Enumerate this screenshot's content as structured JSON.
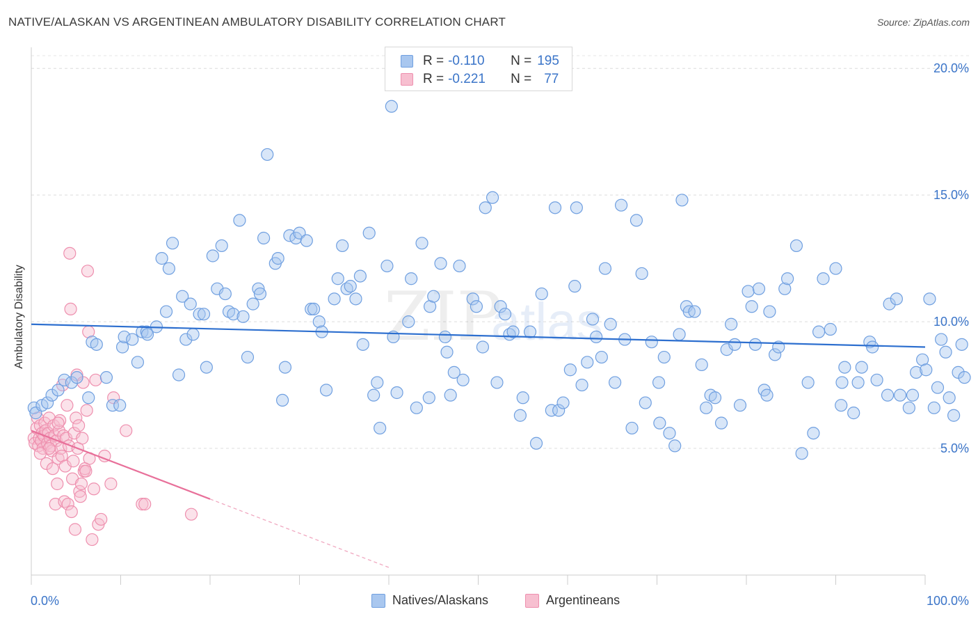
{
  "header": {
    "title": "NATIVE/ALASKAN VS ARGENTINEAN AMBULATORY DISABILITY CORRELATION CHART",
    "source": "Source: ZipAtlas.com"
  },
  "watermark": {
    "text_zip": "ZIP",
    "text_atlas": "atlas"
  },
  "legend": {
    "rows": [
      {
        "r_label": "R = ",
        "r_value": "-0.110",
        "n_label": "N = ",
        "n_value": "195",
        "color": "#a9c7ef",
        "border": "#6f9fe0"
      },
      {
        "r_label": "R = ",
        "r_value": "-0.221",
        "n_label": "N = ",
        "n_value": "77",
        "color": "#f7bfd0",
        "border": "#ee8fae"
      }
    ]
  },
  "bottom_legend": {
    "items": [
      {
        "label": "Natives/Alaskans",
        "color": "#a9c7ef",
        "border": "#6f9fe0"
      },
      {
        "label": "Argentineans",
        "color": "#f7bfd0",
        "border": "#ee8fae"
      }
    ]
  },
  "chart_data": {
    "type": "scatter",
    "title": "NATIVE/ALASKAN VS ARGENTINEAN AMBULATORY DISABILITY CORRELATION CHART",
    "xlabel": "",
    "ylabel": "Ambulatory Disability",
    "xlim": [
      0,
      100
    ],
    "ylim": [
      0,
      20.5
    ],
    "x_tick_labels": [
      "0.0%",
      "100.0%"
    ],
    "y_ticks": [
      5,
      10,
      15,
      20
    ],
    "y_tick_labels": [
      "5.0%",
      "10.0%",
      "15.0%",
      "20.0%"
    ],
    "grid": "horizontal dashed",
    "legend_position": "top-center",
    "series": [
      {
        "name": "Natives/Alaskans",
        "color": "#6f9fe0",
        "fill": "#a9c7ef",
        "trend": {
          "x0": 0,
          "y0": 9.9,
          "x1": 100,
          "y1": 9.0
        },
        "points": [
          [
            0.3,
            6.6
          ],
          [
            0.5,
            6.4
          ],
          [
            1.2,
            6.7
          ],
          [
            1.8,
            6.8
          ],
          [
            2.3,
            7.1
          ],
          [
            3.0,
            7.3
          ],
          [
            3.7,
            7.7
          ],
          [
            4.5,
            7.6
          ],
          [
            5.1,
            7.8
          ],
          [
            6.4,
            7.0
          ],
          [
            6.8,
            9.2
          ],
          [
            7.3,
            9.1
          ],
          [
            8.4,
            7.8
          ],
          [
            9.1,
            6.7
          ],
          [
            9.9,
            6.7
          ],
          [
            10.2,
            9.0
          ],
          [
            10.4,
            9.4
          ],
          [
            11.3,
            9.3
          ],
          [
            11.9,
            8.4
          ],
          [
            12.4,
            9.6
          ],
          [
            12.9,
            9.6
          ],
          [
            13.0,
            9.5
          ],
          [
            14.0,
            9.8
          ],
          [
            14.6,
            12.5
          ],
          [
            15.1,
            10.4
          ],
          [
            15.4,
            12.1
          ],
          [
            15.8,
            13.1
          ],
          [
            16.5,
            7.9
          ],
          [
            16.9,
            11.0
          ],
          [
            17.3,
            9.3
          ],
          [
            17.8,
            10.7
          ],
          [
            18.1,
            9.5
          ],
          [
            18.8,
            10.3
          ],
          [
            19.3,
            10.3
          ],
          [
            19.6,
            8.2
          ],
          [
            20.3,
            12.6
          ],
          [
            20.8,
            11.3
          ],
          [
            21.3,
            13.0
          ],
          [
            21.7,
            11.1
          ],
          [
            22.1,
            10.4
          ],
          [
            22.6,
            10.3
          ],
          [
            23.3,
            14.0
          ],
          [
            23.7,
            10.2
          ],
          [
            24.2,
            8.6
          ],
          [
            24.8,
            10.7
          ],
          [
            25.4,
            11.3
          ],
          [
            25.6,
            11.1
          ],
          [
            26.0,
            13.3
          ],
          [
            26.4,
            16.6
          ],
          [
            27.3,
            12.3
          ],
          [
            27.6,
            12.5
          ],
          [
            28.1,
            6.9
          ],
          [
            28.4,
            8.2
          ],
          [
            28.9,
            13.4
          ],
          [
            29.6,
            13.3
          ],
          [
            30.0,
            13.5
          ],
          [
            30.8,
            13.2
          ],
          [
            31.3,
            10.5
          ],
          [
            31.6,
            10.5
          ],
          [
            32.2,
            10.0
          ],
          [
            32.5,
            9.6
          ],
          [
            33.0,
            7.3
          ],
          [
            33.9,
            10.9
          ],
          [
            34.3,
            11.7
          ],
          [
            34.8,
            13.0
          ],
          [
            35.3,
            11.3
          ],
          [
            35.7,
            11.4
          ],
          [
            36.3,
            10.9
          ],
          [
            36.8,
            11.8
          ],
          [
            37.1,
            9.1
          ],
          [
            37.8,
            13.5
          ],
          [
            38.3,
            7.1
          ],
          [
            38.7,
            7.6
          ],
          [
            39.0,
            5.8
          ],
          [
            39.8,
            12.2
          ],
          [
            40.3,
            18.5
          ],
          [
            40.5,
            9.4
          ],
          [
            40.9,
            7.2
          ],
          [
            42.2,
            10.0
          ],
          [
            42.5,
            11.7
          ],
          [
            43.1,
            6.6
          ],
          [
            43.7,
            13.1
          ],
          [
            44.5,
            7.0
          ],
          [
            44.6,
            10.6
          ],
          [
            45.0,
            11.0
          ],
          [
            45.8,
            12.3
          ],
          [
            46.3,
            9.4
          ],
          [
            46.5,
            8.8
          ],
          [
            46.9,
            7.1
          ],
          [
            47.3,
            8.0
          ],
          [
            47.9,
            12.2
          ],
          [
            48.3,
            7.7
          ],
          [
            49.4,
            10.9
          ],
          [
            49.8,
            10.6
          ],
          [
            50.5,
            9.0
          ],
          [
            50.8,
            14.5
          ],
          [
            51.6,
            14.9
          ],
          [
            52.1,
            7.6
          ],
          [
            52.5,
            10.6
          ],
          [
            53.0,
            10.3
          ],
          [
            53.5,
            9.5
          ],
          [
            53.9,
            9.6
          ],
          [
            54.7,
            6.3
          ],
          [
            55.0,
            7.0
          ],
          [
            55.8,
            9.6
          ],
          [
            56.5,
            5.2
          ],
          [
            57.1,
            11.1
          ],
          [
            58.2,
            6.5
          ],
          [
            58.6,
            14.5
          ],
          [
            59.0,
            6.5
          ],
          [
            59.5,
            6.8
          ],
          [
            60.3,
            8.1
          ],
          [
            60.8,
            11.4
          ],
          [
            61.0,
            14.5
          ],
          [
            61.6,
            7.5
          ],
          [
            62.2,
            8.4
          ],
          [
            62.8,
            10.1
          ],
          [
            63.2,
            9.4
          ],
          [
            63.8,
            8.6
          ],
          [
            64.2,
            12.1
          ],
          [
            64.8,
            9.9
          ],
          [
            65.3,
            7.6
          ],
          [
            66.0,
            14.6
          ],
          [
            66.4,
            9.3
          ],
          [
            67.2,
            5.8
          ],
          [
            67.7,
            14.0
          ],
          [
            68.3,
            11.9
          ],
          [
            68.7,
            6.8
          ],
          [
            69.4,
            9.2
          ],
          [
            70.2,
            7.6
          ],
          [
            70.3,
            6.0
          ],
          [
            70.8,
            8.6
          ],
          [
            71.4,
            5.6
          ],
          [
            72.0,
            5.1
          ],
          [
            72.5,
            9.5
          ],
          [
            72.8,
            14.8
          ],
          [
            73.3,
            10.6
          ],
          [
            73.6,
            10.4
          ],
          [
            74.2,
            10.4
          ],
          [
            75.0,
            8.3
          ],
          [
            75.5,
            6.6
          ],
          [
            76.0,
            7.1
          ],
          [
            76.5,
            7.0
          ],
          [
            77.2,
            6.0
          ],
          [
            77.8,
            8.9
          ],
          [
            78.3,
            9.9
          ],
          [
            78.7,
            9.1
          ],
          [
            79.3,
            6.7
          ],
          [
            80.2,
            11.2
          ],
          [
            80.6,
            10.6
          ],
          [
            81.0,
            9.1
          ],
          [
            81.4,
            11.3
          ],
          [
            82.0,
            7.3
          ],
          [
            82.3,
            7.1
          ],
          [
            82.6,
            10.4
          ],
          [
            83.2,
            8.7
          ],
          [
            83.6,
            9.0
          ],
          [
            84.3,
            11.3
          ],
          [
            84.6,
            11.7
          ],
          [
            85.6,
            13.0
          ],
          [
            86.2,
            4.8
          ],
          [
            86.9,
            7.6
          ],
          [
            87.5,
            5.6
          ],
          [
            88.1,
            9.6
          ],
          [
            88.6,
            11.7
          ],
          [
            89.4,
            9.7
          ],
          [
            90.0,
            12.1
          ],
          [
            90.6,
            6.7
          ],
          [
            90.7,
            7.6
          ],
          [
            91.0,
            8.2
          ],
          [
            92.0,
            6.4
          ],
          [
            92.5,
            7.6
          ],
          [
            92.9,
            8.2
          ],
          [
            93.8,
            9.2
          ],
          [
            94.1,
            9.0
          ],
          [
            94.6,
            7.7
          ],
          [
            95.8,
            7.1
          ],
          [
            96.0,
            10.7
          ],
          [
            96.8,
            10.9
          ],
          [
            97.2,
            7.1
          ],
          [
            98.2,
            6.6
          ],
          [
            98.6,
            7.1
          ],
          [
            99.0,
            8.0
          ],
          [
            99.7,
            8.5
          ],
          [
            100.1,
            8.1
          ],
          [
            100.5,
            10.9
          ],
          [
            101.0,
            6.6
          ],
          [
            101.4,
            7.4
          ],
          [
            101.8,
            9.3
          ],
          [
            102.3,
            8.8
          ],
          [
            102.7,
            7.0
          ],
          [
            103.2,
            6.3
          ],
          [
            103.7,
            8.0
          ],
          [
            104.1,
            9.1
          ],
          [
            104.4,
            7.8
          ]
        ]
      },
      {
        "name": "Argentineans",
        "color": "#ee8fae",
        "fill": "#f7bfd0",
        "trend": {
          "x0": 0,
          "y0": 5.7,
          "x1": 20,
          "y1": 3.0,
          "dashed_to": {
            "x": 40,
            "y": 0.3
          }
        },
        "points": [
          [
            0.3,
            5.4
          ],
          [
            0.4,
            5.2
          ],
          [
            0.6,
            5.8
          ],
          [
            0.7,
            6.2
          ],
          [
            0.8,
            5.1
          ],
          [
            0.9,
            5.4
          ],
          [
            1.0,
            5.9
          ],
          [
            1.1,
            5.3
          ],
          [
            1.2,
            5.6
          ],
          [
            1.3,
            5.0
          ],
          [
            1.4,
            5.5
          ],
          [
            1.5,
            6.0
          ],
          [
            1.6,
            5.7
          ],
          [
            1.7,
            4.4
          ],
          [
            1.8,
            5.2
          ],
          [
            1.9,
            5.6
          ],
          [
            2.0,
            6.2
          ],
          [
            2.1,
            5.4
          ],
          [
            2.2,
            5.1
          ],
          [
            2.3,
            4.9
          ],
          [
            2.4,
            4.2
          ],
          [
            2.5,
            5.9
          ],
          [
            2.6,
            5.5
          ],
          [
            2.7,
            2.8
          ],
          [
            2.8,
            5.3
          ],
          [
            2.9,
            3.6
          ],
          [
            3.0,
            4.6
          ],
          [
            3.1,
            5.7
          ],
          [
            3.2,
            6.1
          ],
          [
            3.3,
            5.0
          ],
          [
            3.4,
            4.7
          ],
          [
            3.5,
            7.5
          ],
          [
            3.6,
            5.5
          ],
          [
            3.7,
            2.9
          ],
          [
            3.8,
            4.3
          ],
          [
            3.9,
            5.4
          ],
          [
            4.0,
            6.7
          ],
          [
            4.1,
            2.8
          ],
          [
            4.2,
            5.1
          ],
          [
            4.3,
            12.7
          ],
          [
            4.4,
            10.5
          ],
          [
            4.5,
            2.5
          ],
          [
            4.6,
            3.8
          ],
          [
            4.7,
            4.5
          ],
          [
            4.8,
            5.6
          ],
          [
            4.9,
            1.8
          ],
          [
            5.0,
            6.2
          ],
          [
            5.1,
            7.9
          ],
          [
            5.2,
            5.0
          ],
          [
            5.3,
            5.9
          ],
          [
            5.4,
            3.3
          ],
          [
            5.5,
            3.1
          ],
          [
            5.6,
            3.6
          ],
          [
            5.7,
            5.4
          ],
          [
            5.8,
            7.6
          ],
          [
            5.9,
            4.1
          ],
          [
            6.0,
            4.2
          ],
          [
            6.1,
            4.1
          ],
          [
            6.2,
            6.5
          ],
          [
            6.3,
            12.0
          ],
          [
            6.4,
            9.6
          ],
          [
            6.5,
            4.6
          ],
          [
            6.8,
            1.4
          ],
          [
            7.0,
            3.4
          ],
          [
            7.2,
            7.7
          ],
          [
            7.5,
            2.0
          ],
          [
            7.8,
            2.2
          ],
          [
            8.2,
            4.7
          ],
          [
            8.9,
            3.6
          ],
          [
            9.2,
            7.0
          ],
          [
            10.6,
            5.7
          ],
          [
            12.4,
            2.8
          ],
          [
            12.7,
            2.8
          ],
          [
            17.9,
            2.4
          ],
          [
            2.0,
            5.0
          ],
          [
            1.0,
            4.8
          ],
          [
            3.0,
            6.0
          ]
        ]
      }
    ]
  }
}
